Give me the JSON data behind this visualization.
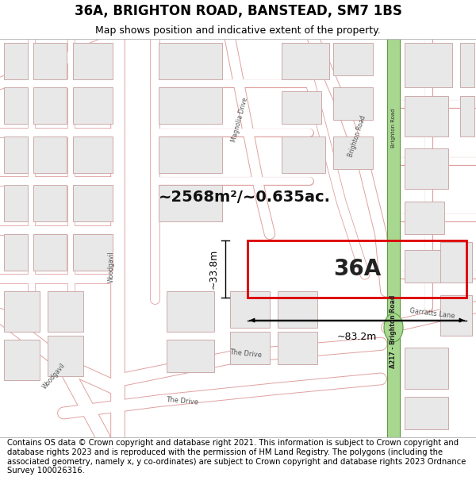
{
  "title": "36A, BRIGHTON ROAD, BANSTEAD, SM7 1BS",
  "subtitle": "Map shows position and indicative extent of the property.",
  "footer": "Contains OS data © Crown copyright and database right 2021. This information is subject to Crown copyright and database rights 2023 and is reproduced with the permission of HM Land Registry. The polygons (including the associated geometry, namely x, y co-ordinates) are subject to Crown copyright and database rights 2023 Ordnance Survey 100026316.",
  "area_label": "~2568m²/~0.635ac.",
  "width_label": "~83.2m",
  "height_label": "~33.8m",
  "property_label": "36A",
  "map_bg": "#ffffff",
  "road_line_color": "#e8a0a0",
  "road_fill_color": "#ffffff",
  "property_outline": "#dd0000",
  "property_fill": "none",
  "green_road_fill": "#a8d890",
  "green_road_border": "#5a9940",
  "building_fill": "#e8e8e8",
  "building_stroke": "#ccaaaa",
  "title_fontsize": 12,
  "subtitle_fontsize": 9,
  "footer_fontsize": 7.2,
  "label_color": "#555555",
  "area_fontsize": 14,
  "dim_fontsize": 9
}
